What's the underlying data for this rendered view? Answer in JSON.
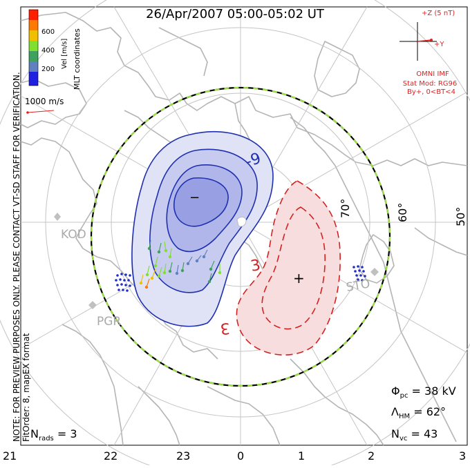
{
  "title": "26/Apr/2007 05:00-05:02 UT",
  "colorbar": {
    "unit_label": "Vel [m/s]",
    "ticks": [
      "600",
      "400",
      "200"
    ],
    "colors": [
      "#ff2000",
      "#ff7a00",
      "#f0c000",
      "#80e030",
      "#40a060",
      "#6080c0",
      "#2020e0"
    ]
  },
  "coordinate_label": "MLT coordinates",
  "preview_note": "NOTE: FOR PREVIEW PURPOSES ONLY. PLEASE CONTACT VT-SD STAFF FOR VERIFICATION.",
  "fit_order": "FitOrder: 8, mapEX format",
  "reference_vector": "1000 m/s",
  "imf": {
    "z_label": "+Z (5 nT)",
    "y_label": "+Y",
    "source": "OMNI IMF",
    "model": "Stat Mod: RG96",
    "condition": "By+, 0<BT<4"
  },
  "latitude_labels": [
    "70°",
    "60°",
    "50°"
  ],
  "mlt_labels": [
    "21",
    "22",
    "23",
    "0",
    "1",
    "2",
    "3"
  ],
  "stations": [
    "KOD",
    "PGR",
    "STO"
  ],
  "contour_labels": {
    "negative": "-9",
    "positive_a": "3",
    "positive_b": "3"
  },
  "potential_markers": {
    "min": "−",
    "max": "+"
  },
  "stats": {
    "phi_symbol": "Φ",
    "phi_sub": "pc",
    "phi_value": " = 38 kV",
    "lambda_symbol": "Λ",
    "lambda_sub": "HM",
    "lambda_value": " = 62°",
    "nvc_symbol": "N",
    "nvc_sub": "vc",
    "nvc_value": " = 43",
    "nrads_symbol": "N",
    "nrads_sub": "rads",
    "nrads_value": " = 3"
  },
  "colors": {
    "negative_cell": "#1e2fb0",
    "positive_cell": "#d42020",
    "boundary": "#000000",
    "boundary_dash": "#9ae040",
    "grid": "#bbbbbb",
    "coast": "#b0b0b0"
  }
}
